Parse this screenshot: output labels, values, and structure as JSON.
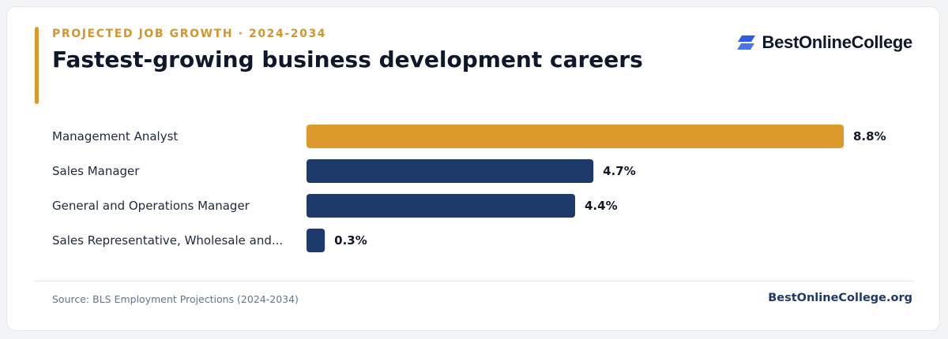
{
  "header": {
    "eyebrow": "PROJECTED JOB GROWTH · 2024-2034",
    "title": "Fastest-growing business development careers"
  },
  "brand": {
    "logo_text": "BestOnlineCollege",
    "logo_icon": "stacked-parallelogram-icon",
    "site": "BestOnlineCollege.org"
  },
  "footer": {
    "source": "Source: BLS Employment Projections (2024-2034)"
  },
  "colors": {
    "highlight": "#dc9a2a",
    "primary": "#1e3a6b",
    "eyebrow": "#d4952c",
    "logo_icon": "#2b5ce6"
  },
  "chart_data": {
    "type": "bar",
    "orientation": "horizontal",
    "categories": [
      "Management Analyst",
      "Sales Manager",
      "General and Operations Manager",
      "Sales Representative, Wholesale and..."
    ],
    "values": [
      8.8,
      4.7,
      4.4,
      0.3
    ],
    "value_labels": [
      "8.8%",
      "4.7%",
      "4.4%",
      "0.3%"
    ],
    "unit": "%",
    "highlight_index": 0,
    "xlim": [
      0,
      8.8
    ],
    "grid": false,
    "legend": "none"
  }
}
